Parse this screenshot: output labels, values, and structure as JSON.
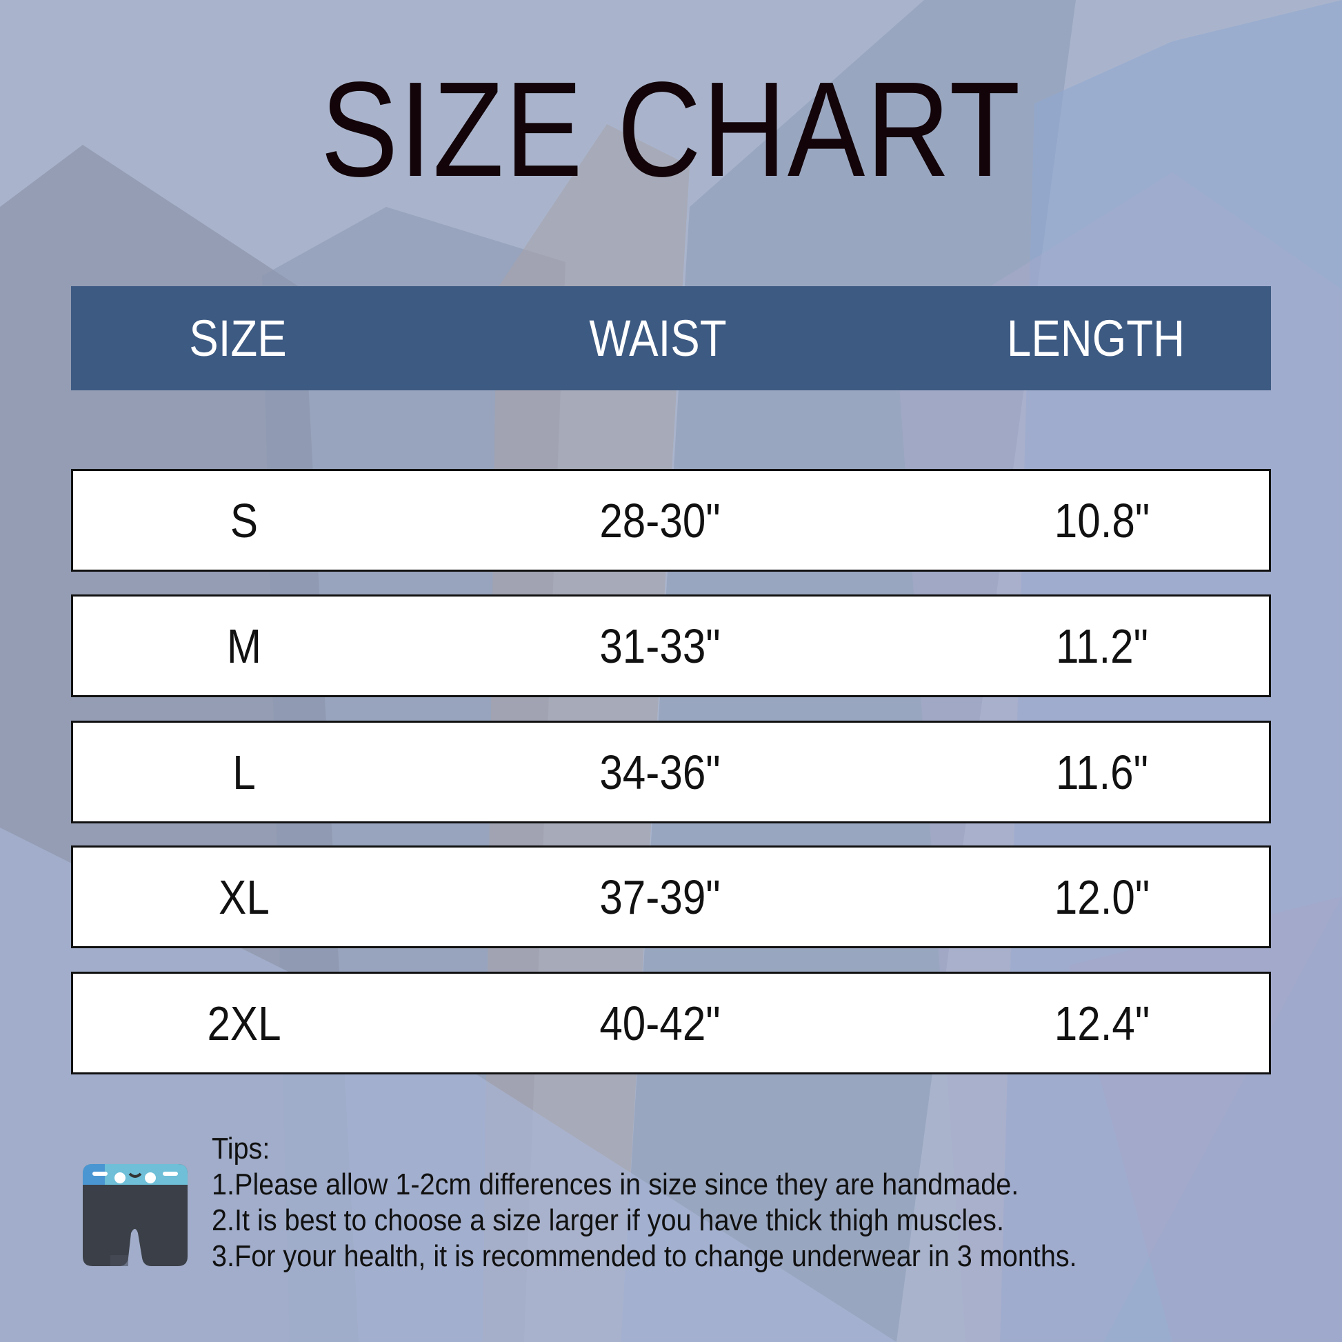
{
  "title": "SIZE CHART",
  "colors": {
    "header_bg": "#3d5a82",
    "background": "#a7b3cb",
    "title": "#120408"
  },
  "table": {
    "headers": [
      "SIZE",
      "WAIST",
      "LENGTH"
    ],
    "rows": [
      [
        "S",
        "28-30\"",
        "10.8\""
      ],
      [
        "M",
        "31-33\"",
        "11.2\""
      ],
      [
        "L",
        "34-36\"",
        "11.6\""
      ],
      [
        "XL",
        "37-39\"",
        "12.0\""
      ],
      [
        "2XL",
        "40-42\"",
        "12.4\""
      ]
    ]
  },
  "tips": {
    "icon": "boxer-briefs-icon",
    "heading": "Tips:",
    "lines": [
      "1.Please allow 1-2cm differences in size since they are handmade.",
      "2.It is best to choose a size larger if you have thick thigh muscles.",
      "3.For your health, it is recommended to change underwear in 3 months."
    ]
  }
}
